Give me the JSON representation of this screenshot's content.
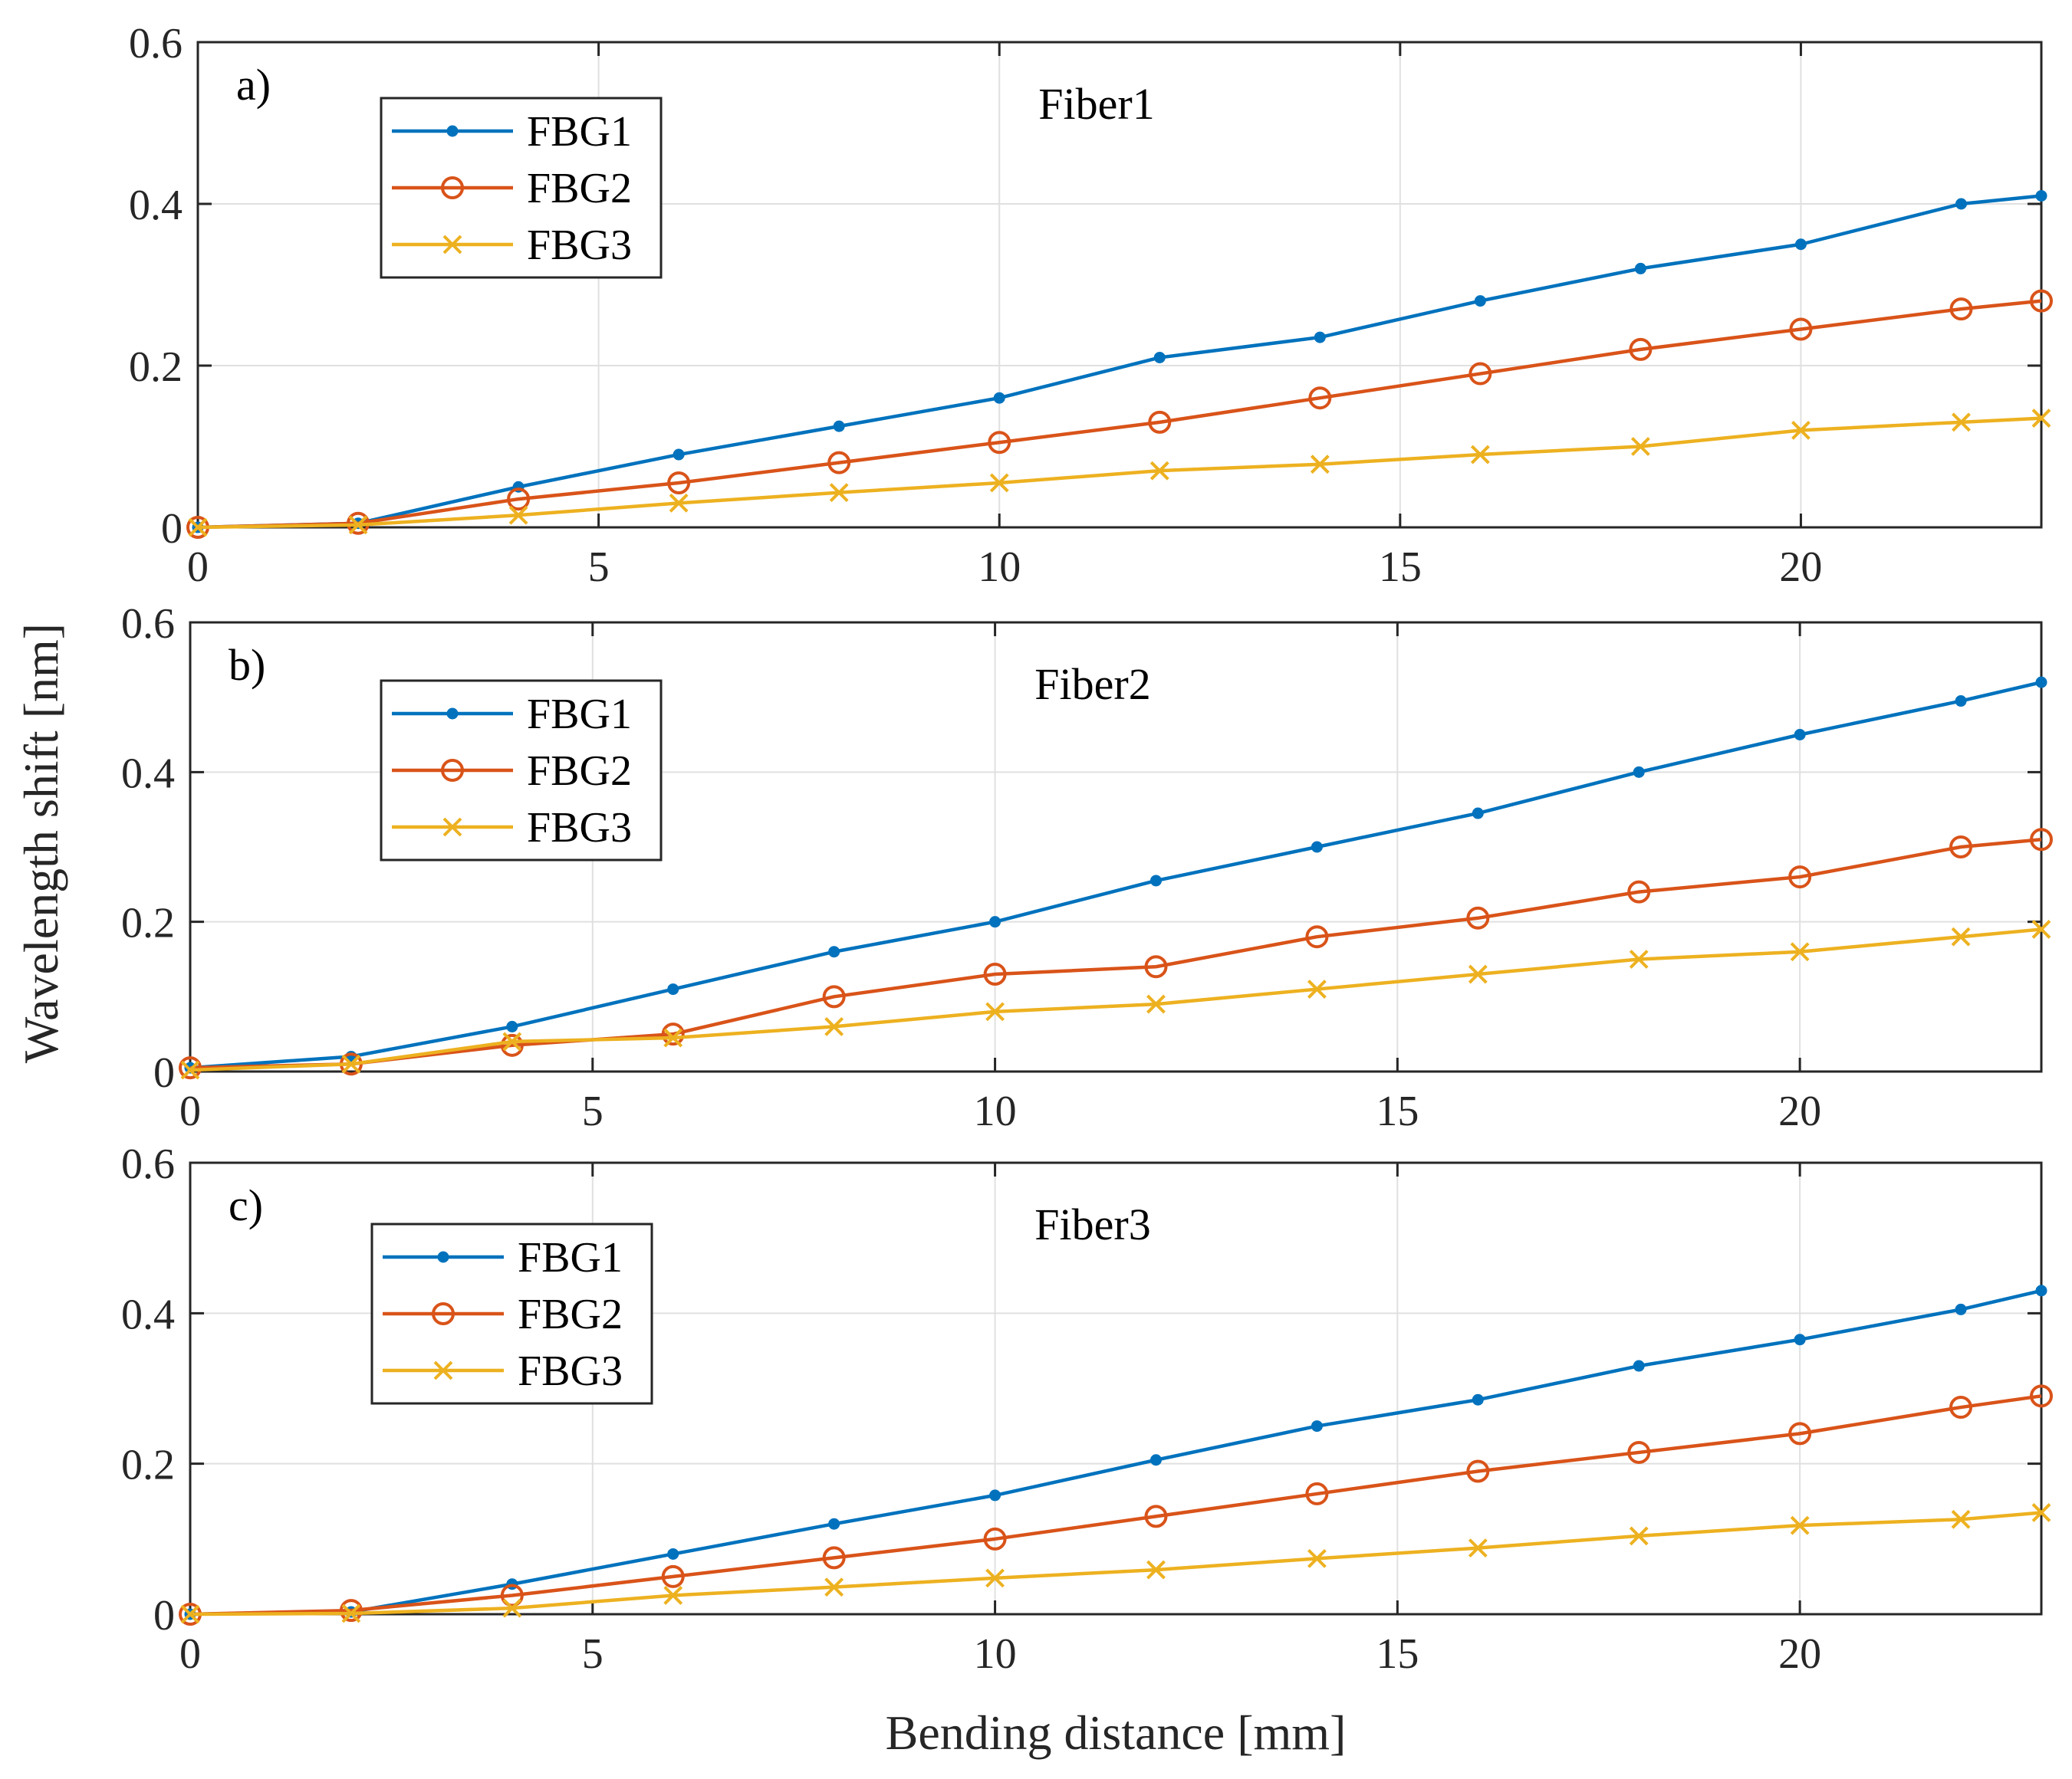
{
  "figure": {
    "ylabel": "Wavelength shift [nm]",
    "xlabel": "Bending distance [mm]"
  },
  "colors": {
    "FBG1": "#0072bd",
    "FBG2": "#d95319",
    "FBG3": "#edb120",
    "axes": "#262626",
    "grid": "#e0e0e0"
  },
  "chart_data": [
    {
      "type": "line",
      "panel_label": "a)",
      "title": "Fiber1",
      "xlim": [
        0,
        23
      ],
      "ylim": [
        0,
        0.6
      ],
      "xticks": [
        0,
        5,
        10,
        15,
        20
      ],
      "yticks": [
        0,
        0.2,
        0.4,
        0.6
      ],
      "ytick_labels": [
        "0",
        "0.2",
        "0.4",
        "0.6"
      ],
      "legend_position": "top-left",
      "x": [
        0,
        2,
        4,
        6,
        8,
        10,
        12,
        14,
        16,
        18,
        20,
        22,
        23
      ],
      "series": [
        {
          "name": "FBG1",
          "marker": "dot",
          "values": [
            0,
            0.005,
            0.05,
            0.09,
            0.125,
            0.16,
            0.21,
            0.235,
            0.28,
            0.32,
            0.35,
            0.4,
            0.41
          ]
        },
        {
          "name": "FBG2",
          "marker": "circle",
          "values": [
            0,
            0.005,
            0.035,
            0.055,
            0.08,
            0.105,
            0.13,
            0.16,
            0.19,
            0.22,
            0.245,
            0.27,
            0.28
          ]
        },
        {
          "name": "FBG3",
          "marker": "x",
          "values": [
            0,
            0.003,
            0.015,
            0.03,
            0.043,
            0.055,
            0.07,
            0.078,
            0.09,
            0.1,
            0.12,
            0.13,
            0.135
          ]
        }
      ]
    },
    {
      "type": "line",
      "panel_label": "b)",
      "title": "Fiber2",
      "xlim": [
        0,
        23
      ],
      "ylim": [
        0,
        0.6
      ],
      "xticks": [
        0,
        5,
        10,
        15,
        20
      ],
      "yticks": [
        0,
        0.2,
        0.4,
        0.6
      ],
      "ytick_labels": [
        "0",
        "0.2",
        "0.4",
        "0.6"
      ],
      "legend_position": "top-left",
      "x": [
        0,
        2,
        4,
        6,
        8,
        10,
        12,
        14,
        16,
        18,
        20,
        22,
        23
      ],
      "series": [
        {
          "name": "FBG1",
          "marker": "dot",
          "values": [
            0.005,
            0.02,
            0.06,
            0.11,
            0.16,
            0.2,
            0.255,
            0.3,
            0.345,
            0.4,
            0.45,
            0.495,
            0.52
          ]
        },
        {
          "name": "FBG2",
          "marker": "circle",
          "values": [
            0.005,
            0.01,
            0.035,
            0.05,
            0.1,
            0.13,
            0.14,
            0.18,
            0.205,
            0.24,
            0.26,
            0.3,
            0.31
          ]
        },
        {
          "name": "FBG3",
          "marker": "x",
          "values": [
            0.002,
            0.01,
            0.04,
            0.045,
            0.06,
            0.08,
            0.09,
            0.11,
            0.13,
            0.15,
            0.16,
            0.18,
            0.19
          ]
        }
      ]
    },
    {
      "type": "line",
      "panel_label": "c)",
      "title": "Fiber3",
      "xlim": [
        0,
        23
      ],
      "ylim": [
        0,
        0.6
      ],
      "xticks": [
        0,
        5,
        10,
        15,
        20
      ],
      "yticks": [
        0,
        0.2,
        0.4,
        0.6
      ],
      "ytick_labels": [
        "0",
        "0.2",
        "0.4",
        "0.6"
      ],
      "legend_position": "top-left",
      "x": [
        0,
        2,
        4,
        6,
        8,
        10,
        12,
        14,
        16,
        18,
        20,
        22,
        23
      ],
      "series": [
        {
          "name": "FBG1",
          "marker": "dot",
          "values": [
            0,
            0.003,
            0.04,
            0.08,
            0.12,
            0.158,
            0.205,
            0.25,
            0.285,
            0.33,
            0.365,
            0.405,
            0.43
          ]
        },
        {
          "name": "FBG2",
          "marker": "circle",
          "values": [
            0,
            0.005,
            0.025,
            0.05,
            0.075,
            0.1,
            0.13,
            0.16,
            0.19,
            0.215,
            0.24,
            0.275,
            0.29
          ]
        },
        {
          "name": "FBG3",
          "marker": "x",
          "values": [
            0,
            0.001,
            0.008,
            0.025,
            0.036,
            0.048,
            0.059,
            0.074,
            0.088,
            0.104,
            0.118,
            0.126,
            0.135
          ]
        }
      ]
    }
  ]
}
